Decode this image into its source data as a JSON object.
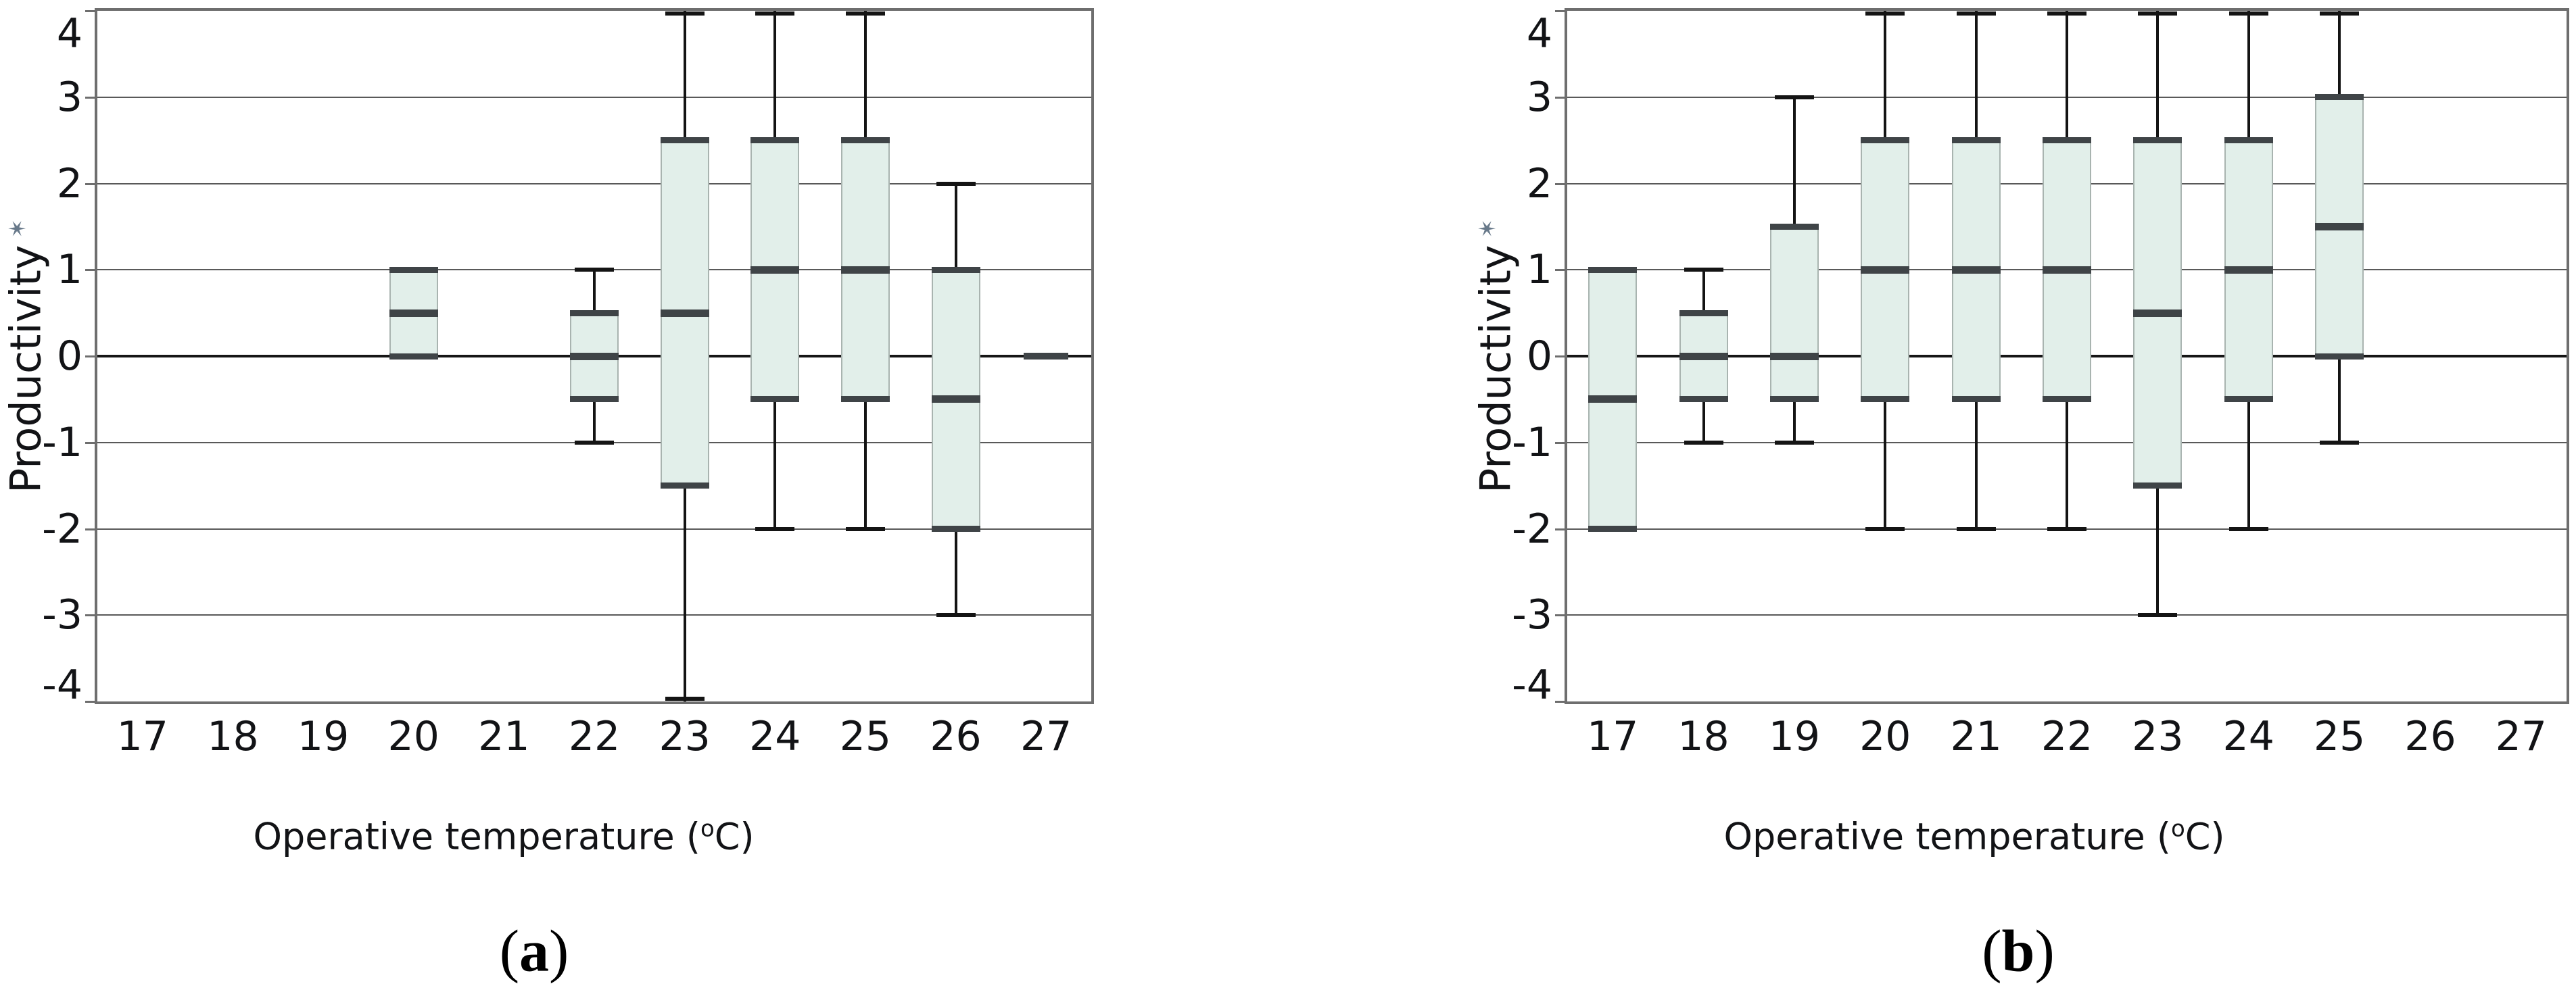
{
  "chart_data": [
    {
      "type": "box",
      "panel": "a",
      "caption": {
        "open": "(",
        "letter": "a",
        "close": ")"
      },
      "y_axis": {
        "title": "Productivity",
        "title_mark": "✶",
        "ticks": [
          4,
          3,
          2,
          1,
          0,
          -1,
          -2,
          -3,
          -4
        ],
        "range": [
          -4,
          4
        ],
        "grid": true
      },
      "x_axis": {
        "title_prefix": "Operative temperature (",
        "title_sup": "o",
        "title_suffix": "C)",
        "ticks": [
          17,
          18,
          19,
          20,
          21,
          22,
          23,
          24,
          25,
          26,
          27
        ]
      },
      "boxes": [
        {
          "temp": 20,
          "whisker_low": null,
          "q1": 0,
          "median": 0.5,
          "q3": 1,
          "whisker_high": null
        },
        {
          "temp": 22,
          "whisker_low": -1,
          "q1": -0.5,
          "median": 0,
          "q3": 0.5,
          "whisker_high": 1
        },
        {
          "temp": 23,
          "whisker_low": -4,
          "q1": -1.5,
          "median": 0.5,
          "q3": 2.5,
          "whisker_high": 4
        },
        {
          "temp": 24,
          "whisker_low": -2,
          "q1": -0.5,
          "median": 1,
          "q3": 2.5,
          "whisker_high": 4
        },
        {
          "temp": 25,
          "whisker_low": -2,
          "q1": -0.5,
          "median": 1,
          "q3": 2.5,
          "whisker_high": 4
        },
        {
          "temp": 26,
          "whisker_low": -3,
          "q1": -2,
          "median": -0.5,
          "q3": 1,
          "whisker_high": 2
        },
        {
          "temp": 27,
          "whisker_low": null,
          "q1": null,
          "median": 0,
          "q3": null,
          "whisker_high": null,
          "median_only": true
        }
      ]
    },
    {
      "type": "box",
      "panel": "b",
      "caption": {
        "open": "(",
        "letter": "b",
        "close": ")"
      },
      "y_axis": {
        "title": "Productivity",
        "title_mark": "✶",
        "ticks": [
          4,
          3,
          2,
          1,
          0,
          -1,
          -2,
          -3,
          -4
        ],
        "range": [
          -4,
          4
        ],
        "grid": true
      },
      "x_axis": {
        "title_prefix": "Operative temperature (",
        "title_sup": "o",
        "title_suffix": "C)",
        "ticks": [
          17,
          18,
          19,
          20,
          21,
          22,
          23,
          24,
          25,
          26,
          27
        ]
      },
      "boxes": [
        {
          "temp": 17,
          "whisker_low": null,
          "q1": -2,
          "median": -0.5,
          "q3": 1,
          "whisker_high": null
        },
        {
          "temp": 18,
          "whisker_low": -1,
          "q1": -0.5,
          "median": 0,
          "q3": 0.5,
          "whisker_high": 1
        },
        {
          "temp": 19,
          "whisker_low": -1,
          "q1": -0.5,
          "median": 0,
          "q3": 1.5,
          "whisker_high": 3
        },
        {
          "temp": 20,
          "whisker_low": -2,
          "q1": -0.5,
          "median": 1,
          "q3": 2.5,
          "whisker_high": 4
        },
        {
          "temp": 21,
          "whisker_low": -2,
          "q1": -0.5,
          "median": 1,
          "q3": 2.5,
          "whisker_high": 4
        },
        {
          "temp": 22,
          "whisker_low": -2,
          "q1": -0.5,
          "median": 1,
          "q3": 2.5,
          "whisker_high": 4
        },
        {
          "temp": 23,
          "whisker_low": -3,
          "q1": -1.5,
          "median": 0.5,
          "q3": 2.5,
          "whisker_high": 4
        },
        {
          "temp": 24,
          "whisker_low": -2,
          "q1": -0.5,
          "median": 1,
          "q3": 2.5,
          "whisker_high": 4
        },
        {
          "temp": 25,
          "whisker_low": -1,
          "q1": 0,
          "median": 1.5,
          "q3": 3,
          "whisker_high": 4
        }
      ]
    }
  ],
  "colors": {
    "box_fill": "#e2efea",
    "box_side_border": "#a9b4b0",
    "quartile_bar": "#3f4447",
    "whisker": "#141414",
    "gridline": "#595959",
    "zero_line": "#161616",
    "frame": "#6e6e6e",
    "text": "#121316",
    "star": "#68798a"
  }
}
